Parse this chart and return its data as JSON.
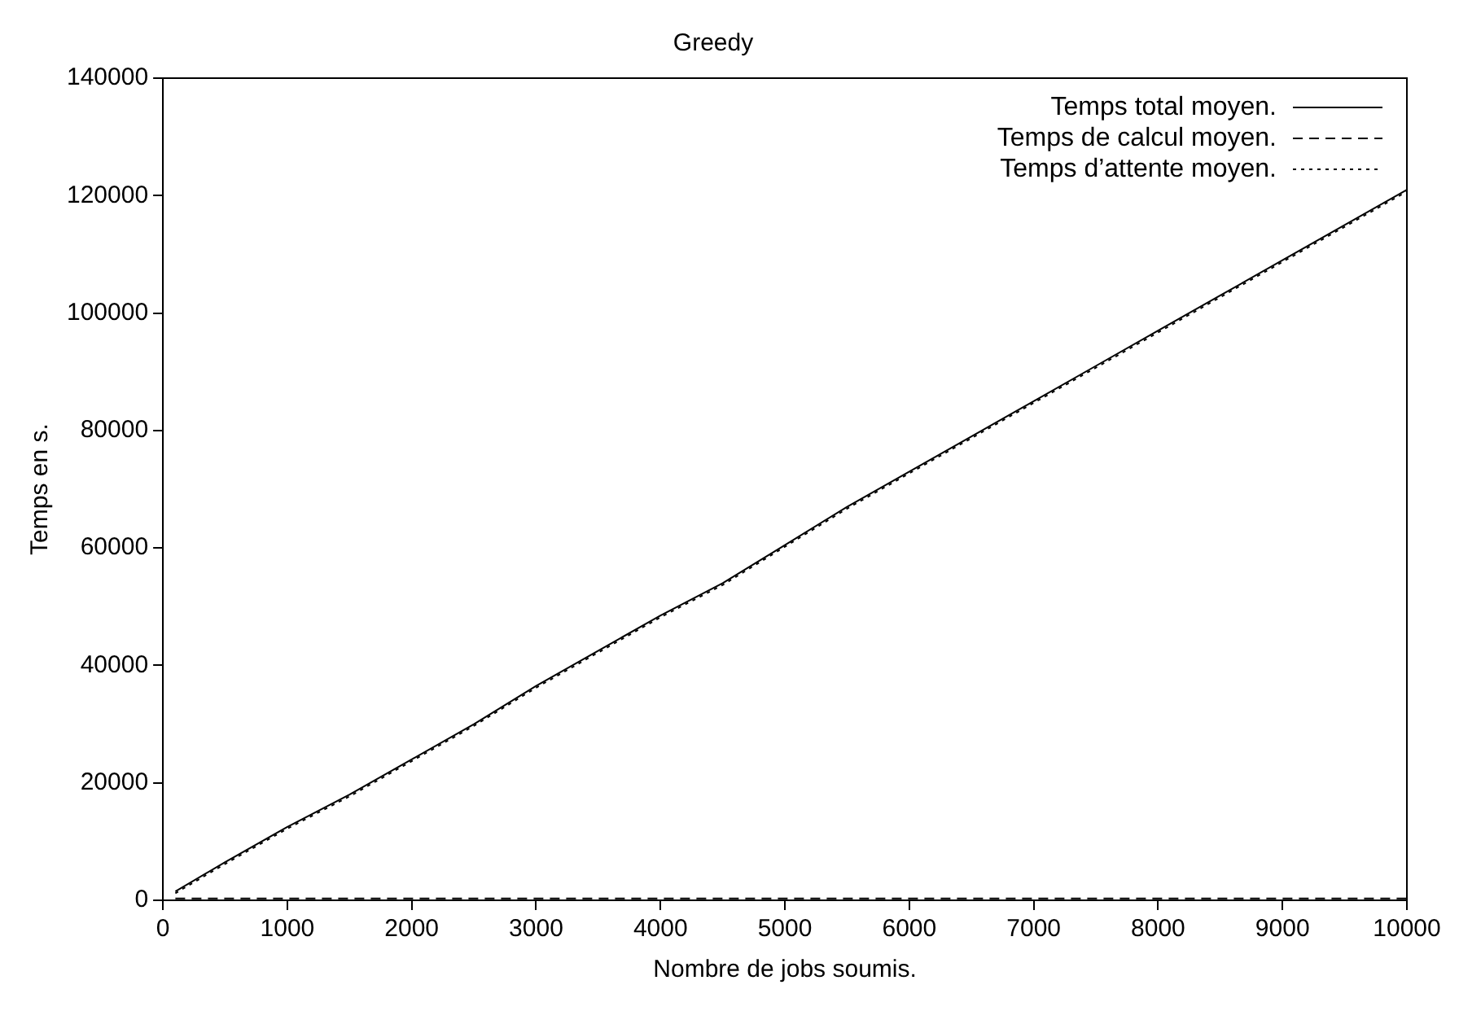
{
  "chart_data": {
    "type": "line",
    "title": "Greedy",
    "xlabel": "Nombre de jobs soumis.",
    "ylabel": "Temps en s.",
    "x": [
      100,
      500,
      1000,
      1500,
      2000,
      2500,
      3000,
      3500,
      4000,
      4500,
      5000,
      5500,
      6000,
      6500,
      7000,
      7500,
      8000,
      8500,
      9000,
      9500,
      10000
    ],
    "xlim": [
      0,
      10000
    ],
    "xticks": [
      0,
      1000,
      2000,
      3000,
      4000,
      5000,
      6000,
      7000,
      8000,
      9000,
      10000
    ],
    "ylim": [
      0,
      140000
    ],
    "yticks": [
      0,
      20000,
      40000,
      60000,
      80000,
      100000,
      120000,
      140000
    ],
    "grid": false,
    "legend": "top right",
    "marker": "none",
    "series": [
      {
        "name": "Temps total moyen.",
        "color": "#000000",
        "line_style": "solid",
        "values": [
          1500,
          6500,
          12500,
          18000,
          24000,
          30000,
          36500,
          42500,
          48500,
          54000,
          60500,
          67000,
          73000,
          79000,
          85000,
          91000,
          97000,
          103000,
          109000,
          115000,
          121000
        ]
      },
      {
        "name": "Temps de calcul moyen.",
        "color": "#000000",
        "line_style": "dashed",
        "values": [
          300,
          300,
          300,
          300,
          300,
          300,
          300,
          300,
          300,
          300,
          300,
          300,
          300,
          300,
          300,
          300,
          300,
          300,
          300,
          300,
          300
        ]
      },
      {
        "name": "Temps d’attente moyen.",
        "color": "#000000",
        "line_style": "dotted",
        "values": [
          1200,
          6200,
          12200,
          17700,
          23700,
          29700,
          36200,
          42200,
          48200,
          53700,
          60200,
          66700,
          72700,
          78700,
          84700,
          90700,
          96700,
          102700,
          108700,
          114700,
          120700
        ]
      }
    ]
  }
}
